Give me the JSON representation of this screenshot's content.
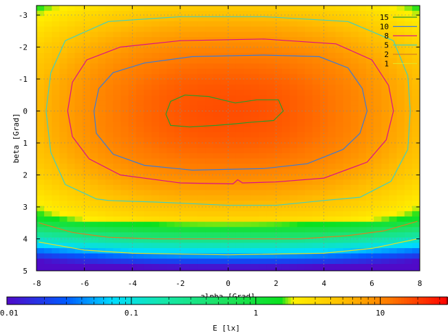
{
  "chart_data": {
    "type": "heatmap",
    "xlabel": "alpha [Grad]",
    "ylabel": "beta [Grad]",
    "xlim": [
      -8,
      8
    ],
    "ylim": [
      -3.3,
      5
    ],
    "y_axis_inverted": true,
    "x_ticks": [
      "-8",
      "-6",
      "-4",
      "-2",
      "0",
      "2",
      "4",
      "6",
      "8"
    ],
    "y_ticks": [
      "-3",
      "-2",
      "-1",
      "0",
      "1",
      "2",
      "3",
      "4",
      "5"
    ],
    "grid": true,
    "legend": {
      "placement": "top-right",
      "entries": [
        {
          "label": "15",
          "color": "#2a9a2a"
        },
        {
          "label": "10",
          "color": "#3a7ad8"
        },
        {
          "label": "8",
          "color": "#d8108a"
        },
        {
          "label": "5",
          "color": "#40d0c0"
        },
        {
          "label": "2",
          "color": "#d88020"
        },
        {
          "label": "1",
          "color": "#e8e020"
        }
      ]
    },
    "contours": [
      {
        "level": 15,
        "color": "#2a9a2a",
        "points": [
          [
            -2.6,
            0.1
          ],
          [
            -2.4,
            -0.3
          ],
          [
            -1.8,
            -0.5
          ],
          [
            -0.8,
            -0.45
          ],
          [
            0.3,
            -0.25
          ],
          [
            1.2,
            -0.35
          ],
          [
            2.1,
            -0.35
          ],
          [
            2.3,
            0.0
          ],
          [
            1.9,
            0.3
          ],
          [
            1.0,
            0.35
          ],
          [
            0.3,
            0.4
          ],
          [
            -0.5,
            0.45
          ],
          [
            -1.6,
            0.5
          ],
          [
            -2.4,
            0.45
          ],
          [
            -2.6,
            0.1
          ]
        ]
      },
      {
        "level": 10,
        "color": "#3a7ad8",
        "points": [
          [
            -5.6,
            0.0
          ],
          [
            -5.4,
            -0.7
          ],
          [
            -4.8,
            -1.2
          ],
          [
            -3.5,
            -1.5
          ],
          [
            -1.5,
            -1.7
          ],
          [
            1.5,
            -1.75
          ],
          [
            3.8,
            -1.7
          ],
          [
            5.0,
            -1.35
          ],
          [
            5.6,
            -0.7
          ],
          [
            5.8,
            0.0
          ],
          [
            5.5,
            0.7
          ],
          [
            4.8,
            1.2
          ],
          [
            3.3,
            1.65
          ],
          [
            1.5,
            1.8
          ],
          [
            -1.5,
            1.85
          ],
          [
            -3.5,
            1.7
          ],
          [
            -4.8,
            1.35
          ],
          [
            -5.5,
            0.7
          ],
          [
            -5.6,
            0.0
          ]
        ]
      },
      {
        "level": 8,
        "color": "#d8108a",
        "points": [
          [
            -6.7,
            0.0
          ],
          [
            -6.5,
            -0.9
          ],
          [
            -5.9,
            -1.6
          ],
          [
            -4.5,
            -2.0
          ],
          [
            -2.0,
            -2.2
          ],
          [
            1.5,
            -2.25
          ],
          [
            4.5,
            -2.1
          ],
          [
            6.0,
            -1.6
          ],
          [
            6.7,
            -0.8
          ],
          [
            6.9,
            0.0
          ],
          [
            6.6,
            0.9
          ],
          [
            5.8,
            1.6
          ],
          [
            4.0,
            2.1
          ],
          [
            2.0,
            2.22
          ],
          [
            0.6,
            2.25
          ],
          [
            0.4,
            2.15
          ],
          [
            0.2,
            2.28
          ],
          [
            -2.0,
            2.25
          ],
          [
            -4.5,
            2.0
          ],
          [
            -5.8,
            1.5
          ],
          [
            -6.5,
            0.8
          ],
          [
            -6.7,
            0.0
          ]
        ]
      },
      {
        "level": 5,
        "color": "#40d0c0",
        "points": [
          [
            -7.6,
            0.0
          ],
          [
            -7.4,
            -1.2
          ],
          [
            -6.8,
            -2.2
          ],
          [
            -5.0,
            -2.8
          ],
          [
            -2.0,
            -2.95
          ],
          [
            1.5,
            -2.95
          ],
          [
            5.0,
            -2.8
          ],
          [
            6.9,
            -2.2
          ],
          [
            7.5,
            -1.1
          ],
          [
            7.6,
            0.0
          ],
          [
            7.5,
            1.2
          ],
          [
            6.8,
            2.2
          ],
          [
            5.5,
            2.7
          ],
          [
            4.0,
            2.8
          ],
          [
            2.0,
            2.95
          ],
          [
            0.0,
            2.95
          ],
          [
            -1.5,
            2.9
          ],
          [
            -3.0,
            2.85
          ],
          [
            -5.0,
            2.8
          ],
          [
            -5.5,
            2.75
          ],
          [
            -6.8,
            2.3
          ],
          [
            -7.4,
            1.3
          ],
          [
            -7.6,
            0.0
          ]
        ]
      },
      {
        "level": 2,
        "color": "#d88020",
        "points": [
          [
            -7.9,
            3.5
          ],
          [
            -6.5,
            3.8
          ],
          [
            -5.0,
            3.95
          ],
          [
            -3.0,
            4.0
          ],
          [
            0.0,
            4.0
          ],
          [
            3.0,
            4.0
          ],
          [
            5.0,
            3.9
          ],
          [
            6.5,
            3.75
          ],
          [
            7.9,
            3.45
          ]
        ]
      },
      {
        "level": 1,
        "color": "#e8e020",
        "points": [
          [
            -7.9,
            4.1
          ],
          [
            -6.0,
            4.35
          ],
          [
            -4.0,
            4.45
          ],
          [
            0.0,
            4.5
          ],
          [
            4.0,
            4.45
          ],
          [
            6.0,
            4.3
          ],
          [
            7.9,
            4.0
          ]
        ]
      }
    ],
    "colorbar": {
      "label": "E [lx]",
      "scale": "log",
      "range": [
        0.01,
        35
      ],
      "ticks": [
        "0.01",
        "0.1",
        "1",
        "10"
      ],
      "tick_values": [
        0.01,
        0.1,
        1,
        10
      ]
    }
  }
}
